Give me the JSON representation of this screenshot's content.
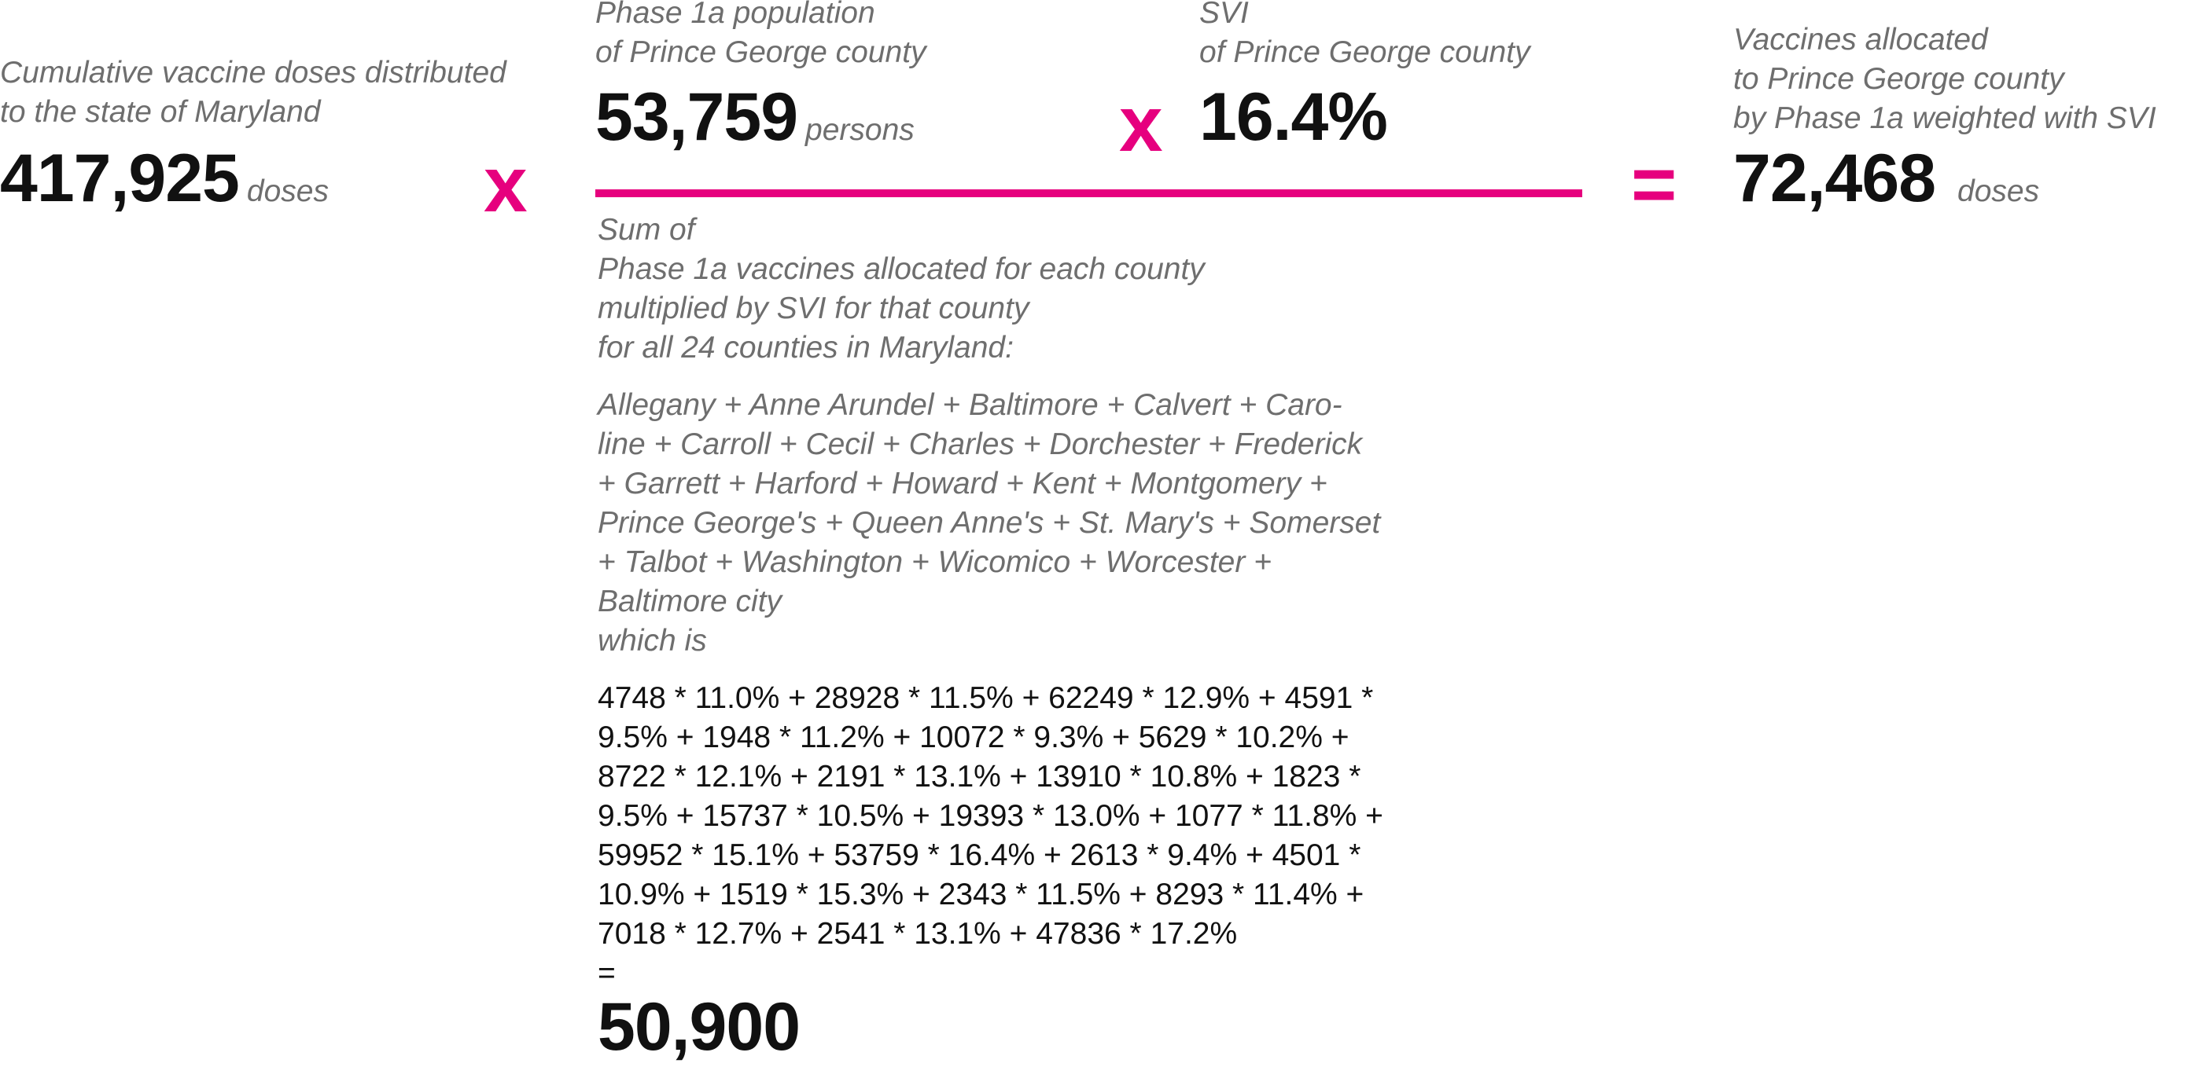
{
  "term1": {
    "label_lines": [
      "Cumulative vaccine doses distributed",
      "to the state of Maryland"
    ],
    "value": "417,925",
    "unit": "doses"
  },
  "multiply1": "x",
  "numerator": {
    "population": {
      "label_lines": [
        "Phase 1a population",
        "of Prince George county"
      ],
      "value": "53,759",
      "unit": "persons"
    },
    "multiply": "x",
    "svi": {
      "label_lines": [
        "SVI",
        "of Prince George county"
      ],
      "value": "16.4%"
    }
  },
  "denominator": {
    "intro_lines": [
      "Sum of",
      "Phase 1a vaccines allocated for each county",
      "multiplied by  SVI for that county",
      "for all 24 counties in Maryland:"
    ],
    "counties_lines": [
      "Allegany + Anne Arundel + Baltimore + Calvert + Caro-",
      "line + Carroll + Cecil + Charles + Dorchester + Frederick",
      "+ Garrett + Harford + Howard + Kent + Montgomery +",
      "Prince George's + Queen Anne's + St. Mary's + Somerset",
      "+ Talbot + Washington + Wicomico + Worcester +",
      "Baltimore city",
      "which is"
    ],
    "formula_lines": [
      "4748 * 11.0% + 28928 * 11.5% + 62249 * 12.9% + 4591 *",
      "9.5% + 1948 * 11.2% + 10072 * 9.3% + 5629 * 10.2% +",
      "8722 * 12.1% + 2191 * 13.1% + 13910 * 10.8% + 1823 *",
      "9.5% + 15737 * 10.5% + 19393 * 13.0% + 1077 * 11.8% +",
      "59952 * 15.1% + 53759 * 16.4% + 2613 * 9.4% + 4501 *",
      "10.9% + 1519 * 15.3% + 2343 * 11.5% + 8293 * 11.4% +",
      "7018 * 12.7% + 2541 * 13.1% + 47836 * 17.2%"
    ],
    "equals": "=",
    "total": "50,900"
  },
  "equals_sign": "=",
  "result": {
    "label_lines": [
      "Vaccines allocated",
      "to Prince George county",
      "by Phase 1a weighted with SVI"
    ],
    "value": "72,468",
    "unit": "doses"
  },
  "colors": {
    "accent": "#e6007e",
    "label_gray": "#6e6e6e",
    "text": "#111111"
  }
}
